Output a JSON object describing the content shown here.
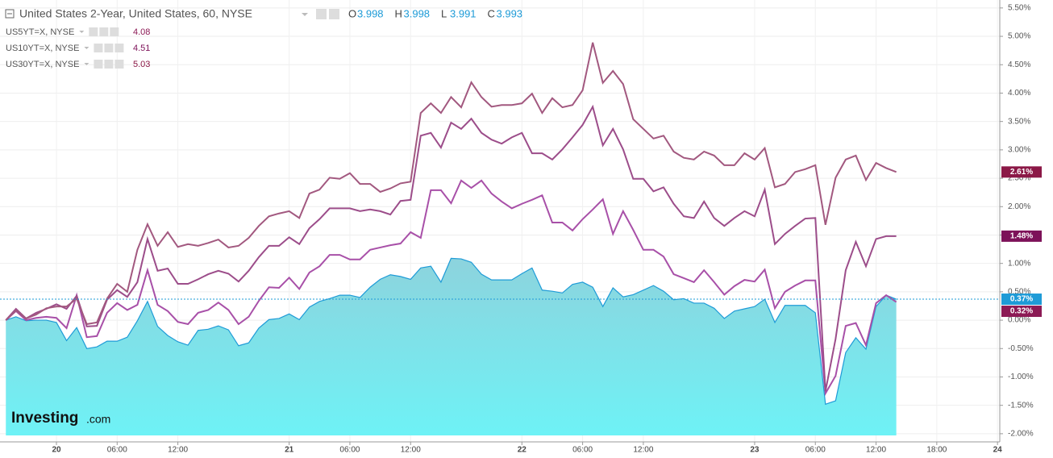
{
  "chart_data": {
    "type": "line",
    "title": "United States 2-Year, United States, 60, NYSE",
    "ohlc": [
      {
        "key": "O",
        "value": 3.998
      },
      {
        "key": "H",
        "value": 3.998
      },
      {
        "key": "L",
        "value": 3.991
      },
      {
        "key": "C",
        "value": 3.993
      }
    ],
    "watermark": [
      "Investing",
      ".com"
    ],
    "grid": true,
    "ylim": [
      -2.03,
      5.64
    ],
    "yticks": [
      {
        "value": 5.5,
        "label": "5.50%"
      },
      {
        "value": 5,
        "label": "5.00%"
      },
      {
        "value": 4.5,
        "label": "4.50%"
      },
      {
        "value": 4,
        "label": "4.00%"
      },
      {
        "value": 3.5,
        "label": "3.50%"
      },
      {
        "value": 3,
        "label": "3.00%"
      },
      {
        "value": 2.5,
        "label": "2.50%"
      },
      {
        "value": 2,
        "label": "2.00%"
      },
      {
        "value": 1.5,
        "label": "1.50%"
      },
      {
        "value": 1,
        "label": "1.00%"
      },
      {
        "value": 0.5,
        "label": "0.50%"
      },
      {
        "value": 0,
        "label": "0.00%"
      },
      {
        "value": -0.5,
        "label": "-0.50%"
      },
      {
        "value": -1,
        "label": "-1.00%"
      },
      {
        "value": -1.5,
        "label": "-1.50%"
      },
      {
        "value": -2,
        "label": "-2.00%"
      }
    ],
    "categories": [
      null,
      null,
      null,
      null,
      null,
      "20",
      null,
      null,
      null,
      null,
      null,
      "06:00",
      null,
      null,
      null,
      null,
      null,
      "12:00",
      null,
      null,
      null,
      null,
      null,
      null,
      null,
      null,
      null,
      null,
      "21",
      null,
      null,
      null,
      null,
      null,
      "06:00",
      null,
      null,
      null,
      null,
      null,
      "12:00",
      null,
      null,
      null,
      null,
      null,
      null,
      null,
      null,
      null,
      null,
      "22",
      null,
      null,
      null,
      null,
      null,
      "06:00",
      null,
      null,
      null,
      null,
      null,
      "12:00",
      null,
      null,
      null,
      null,
      null,
      null,
      null,
      null,
      null,
      null,
      "23",
      null,
      null,
      null,
      null,
      null,
      "06:00",
      null,
      null,
      null,
      null,
      null,
      "12:00",
      null,
      null,
      null,
      null,
      null,
      "18:00",
      null,
      null,
      null,
      null,
      null,
      "24"
    ],
    "series": [
      {
        "area": true,
        "color": "#1e9bd7",
        "label_color": "#1e9bd7",
        "values": [
          0,
          0.06,
          -0.01,
          0,
          0,
          -0.04,
          -0.36,
          -0.13,
          -0.5,
          -0.47,
          -0.37,
          -0.37,
          -0.3,
          -0.01,
          0.33,
          -0.11,
          -0.27,
          -0.38,
          -0.44,
          -0.18,
          -0.16,
          -0.1,
          -0.17,
          -0.45,
          -0.4,
          -0.14,
          0.01,
          0.03,
          0.11,
          0.01,
          0.23,
          0.33,
          0.38,
          0.44,
          0.44,
          0.4,
          0.58,
          0.72,
          0.8,
          0.77,
          0.72,
          0.92,
          0.95,
          0.67,
          1.09,
          1.08,
          1.02,
          0.81,
          0.71,
          0.71,
          0.71,
          0.82,
          0.92,
          0.53,
          0.51,
          0.48,
          0.63,
          0.67,
          0.58,
          0.24,
          0.57,
          0.41,
          0.45,
          0.53,
          0.61,
          0.51,
          0.36,
          0.38,
          0.3,
          0.3,
          0.21,
          0.03,
          0.16,
          0.2,
          0.24,
          0.37,
          -0.04,
          0.26,
          0.26,
          0.26,
          0.13,
          -1.48,
          -1.42,
          -0.57,
          -0.31,
          -0.51,
          0.24,
          0.44,
          0.37,
          null,
          null,
          null,
          null,
          null,
          null,
          null,
          null,
          null,
          null
        ],
        "value_labels": [
          null,
          null,
          null,
          null,
          null,
          null,
          null,
          null,
          null,
          null,
          null,
          null,
          null,
          null,
          null,
          null,
          null,
          null,
          null,
          null,
          null,
          null,
          null,
          null,
          null,
          null,
          null,
          null,
          null,
          null,
          null,
          null,
          null,
          null,
          null,
          null,
          null,
          null,
          null,
          null,
          null,
          null,
          null,
          null,
          null,
          null,
          null,
          null,
          null,
          null,
          null,
          null,
          null,
          null,
          null,
          null,
          null,
          null,
          null,
          null,
          null,
          null,
          null,
          null,
          null,
          null,
          null,
          null,
          null,
          null,
          null,
          null,
          null,
          null,
          null,
          null,
          null,
          null,
          null,
          null,
          null,
          null,
          null,
          null,
          null,
          null,
          null,
          null,
          "0.37%",
          null,
          null,
          null,
          null,
          null,
          null,
          null,
          null,
          null,
          null
        ]
      },
      {
        "name": "US5YT=X, NYSE",
        "quote": 4.08,
        "color": "#a850a8",
        "label_color": "#8c1a55",
        "values": [
          0,
          0.16,
          0,
          0.04,
          0.06,
          0.04,
          -0.14,
          0.44,
          -0.3,
          -0.28,
          0.13,
          0.3,
          0.18,
          0.27,
          0.88,
          0.27,
          0.16,
          -0.03,
          -0.07,
          0.13,
          0.18,
          0.31,
          0.18,
          -0.07,
          0.06,
          0.34,
          0.58,
          0.57,
          0.75,
          0.55,
          0.84,
          0.95,
          1.15,
          1.15,
          1.07,
          1.07,
          1.24,
          1.28,
          1.32,
          1.35,
          1.55,
          1.45,
          2.29,
          2.29,
          2.06,
          2.46,
          2.33,
          2.46,
          2.23,
          2.09,
          1.97,
          2.05,
          2.12,
          2.2,
          1.72,
          1.72,
          1.58,
          1.78,
          1.95,
          2.13,
          1.52,
          1.92,
          1.59,
          1.24,
          1.24,
          1.12,
          0.81,
          0.74,
          0.67,
          0.88,
          0.67,
          0.45,
          0.6,
          0.71,
          0.68,
          0.89,
          0.21,
          0.5,
          0.61,
          0.7,
          0.7,
          -1.29,
          -0.98,
          -0.1,
          -0.05,
          -0.44,
          0.3,
          0.44,
          0.32,
          null,
          null,
          null,
          null,
          null,
          null,
          null,
          null,
          null,
          null
        ],
        "value_labels": [
          null,
          null,
          null,
          null,
          null,
          null,
          null,
          null,
          null,
          null,
          null,
          null,
          null,
          null,
          null,
          null,
          null,
          null,
          null,
          null,
          null,
          null,
          null,
          null,
          null,
          null,
          null,
          null,
          null,
          null,
          null,
          null,
          null,
          null,
          null,
          null,
          null,
          null,
          null,
          null,
          null,
          null,
          null,
          null,
          null,
          null,
          null,
          null,
          null,
          null,
          null,
          null,
          null,
          null,
          null,
          null,
          null,
          null,
          null,
          null,
          null,
          null,
          null,
          null,
          null,
          null,
          null,
          null,
          null,
          null,
          null,
          null,
          null,
          null,
          null,
          null,
          null,
          null,
          null,
          null,
          null,
          null,
          null,
          null,
          null,
          null,
          null,
          null,
          "0.32%",
          null,
          null,
          null,
          null,
          null,
          null,
          null,
          null,
          null,
          null
        ]
      },
      {
        "name": "US10YT=X, NYSE",
        "quote": 4.51,
        "color": "#9c4d8a",
        "label_color": "#7d1259",
        "values": [
          0,
          0.2,
          0.03,
          0.13,
          0.2,
          0.28,
          0.2,
          0.43,
          -0.11,
          -0.1,
          0.36,
          0.53,
          0.41,
          0.67,
          1.43,
          0.87,
          0.91,
          0.64,
          0.64,
          0.72,
          0.81,
          0.87,
          0.82,
          0.68,
          0.87,
          1.11,
          1.31,
          1.31,
          1.46,
          1.34,
          1.62,
          1.78,
          1.97,
          1.97,
          1.97,
          1.92,
          1.95,
          1.92,
          1.86,
          2.1,
          2.12,
          3.25,
          3.3,
          3.04,
          3.48,
          3.37,
          3.55,
          3.3,
          3.18,
          3.11,
          3.22,
          3.3,
          2.94,
          2.94,
          2.83,
          3.01,
          3.22,
          3.44,
          3.76,
          3.08,
          3.37,
          3.01,
          2.49,
          2.49,
          2.27,
          2.34,
          2.05,
          1.83,
          1.8,
          2.09,
          1.8,
          1.66,
          1.8,
          1.92,
          1.83,
          2.3,
          1.34,
          1.52,
          1.66,
          1.79,
          1.8,
          -1.25,
          -0.33,
          0.88,
          1.38,
          0.95,
          1.43,
          1.48,
          1.48,
          null,
          null,
          null,
          null,
          null,
          null,
          null,
          null,
          null,
          null
        ],
        "value_labels": [
          null,
          null,
          null,
          null,
          null,
          null,
          null,
          null,
          null,
          null,
          null,
          null,
          null,
          null,
          null,
          null,
          null,
          null,
          null,
          null,
          null,
          null,
          null,
          null,
          null,
          null,
          null,
          null,
          null,
          null,
          null,
          null,
          null,
          null,
          null,
          null,
          null,
          null,
          null,
          null,
          null,
          null,
          null,
          null,
          null,
          null,
          null,
          null,
          null,
          null,
          null,
          null,
          null,
          null,
          null,
          null,
          null,
          null,
          null,
          null,
          null,
          null,
          null,
          null,
          null,
          null,
          null,
          null,
          null,
          null,
          null,
          null,
          null,
          null,
          null,
          null,
          null,
          null,
          null,
          null,
          null,
          null,
          null,
          null,
          null,
          null,
          null,
          null,
          "1.48%",
          null,
          null,
          null,
          null,
          null,
          null,
          null,
          null,
          null,
          null
        ]
      },
      {
        "name": "US30YT=X, NYSE",
        "quote": 5.03,
        "color": "#a2587f",
        "label_color": "#8b1846",
        "values": [
          0,
          0.17,
          0.03,
          0.1,
          0.21,
          0.24,
          0.24,
          0.38,
          -0.07,
          -0.04,
          0.38,
          0.64,
          0.5,
          1.24,
          1.69,
          1.31,
          1.55,
          1.29,
          1.34,
          1.31,
          1.36,
          1.42,
          1.28,
          1.31,
          1.45,
          1.66,
          1.83,
          1.88,
          1.92,
          1.8,
          2.23,
          2.3,
          2.51,
          2.49,
          2.59,
          2.4,
          2.4,
          2.26,
          2.32,
          2.41,
          2.44,
          3.65,
          3.82,
          3.65,
          3.93,
          3.75,
          4.19,
          3.93,
          3.76,
          3.79,
          3.79,
          3.82,
          3.99,
          3.65,
          3.91,
          3.75,
          3.79,
          4.05,
          4.89,
          4.18,
          4.39,
          4.16,
          3.54,
          3.37,
          3.2,
          3.25,
          2.97,
          2.86,
          2.83,
          2.97,
          2.9,
          2.73,
          2.73,
          2.94,
          2.83,
          3.03,
          2.34,
          2.4,
          2.61,
          2.66,
          2.73,
          1.68,
          2.51,
          2.83,
          2.9,
          2.47,
          2.77,
          2.68,
          2.61,
          null,
          null,
          null,
          null,
          null,
          null,
          null,
          null,
          null,
          null
        ],
        "value_labels": [
          null,
          null,
          null,
          null,
          null,
          null,
          null,
          null,
          null,
          null,
          null,
          null,
          null,
          null,
          null,
          null,
          null,
          null,
          null,
          null,
          null,
          null,
          null,
          null,
          null,
          null,
          null,
          null,
          null,
          null,
          null,
          null,
          null,
          null,
          null,
          null,
          null,
          null,
          null,
          null,
          null,
          null,
          null,
          null,
          null,
          null,
          null,
          null,
          null,
          null,
          null,
          null,
          null,
          null,
          null,
          null,
          null,
          null,
          null,
          null,
          null,
          null,
          null,
          null,
          null,
          null,
          null,
          null,
          null,
          null,
          null,
          null,
          null,
          null,
          null,
          null,
          null,
          null,
          null,
          null,
          null,
          null,
          null,
          null,
          null,
          null,
          null,
          null,
          "2.61%",
          null,
          null,
          null,
          null,
          null,
          null,
          null,
          null,
          null,
          null
        ]
      }
    ]
  }
}
